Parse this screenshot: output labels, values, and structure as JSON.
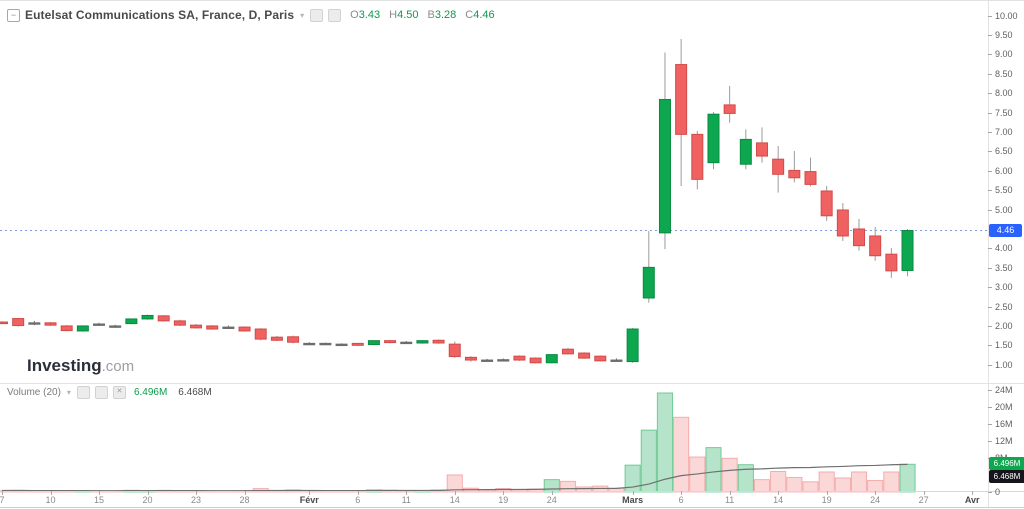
{
  "header": {
    "collapse_glyph": "−",
    "title": "Eutelsat Communications SA, France, D, Paris",
    "ohlc": [
      {
        "k": "O",
        "v": "3.43"
      },
      {
        "k": "H",
        "v": "4.50"
      },
      {
        "k": "B",
        "v": "3.28"
      },
      {
        "k": "C",
        "v": "4.46"
      }
    ]
  },
  "volume_legend": {
    "label": "Volume (20)",
    "current": "6.496M",
    "ma": "6.468M"
  },
  "watermark": {
    "brand": "Investing",
    "domain": ".com"
  },
  "badges": {
    "price": "4.46",
    "vol_current": "6.496M",
    "vol_ma": "6.468M"
  },
  "price_axis": [
    {
      "t": "10.00",
      "v": 10.0
    },
    {
      "t": "9.50",
      "v": 9.5
    },
    {
      "t": "9.00",
      "v": 9.0
    },
    {
      "t": "8.50",
      "v": 8.5
    },
    {
      "t": "8.00",
      "v": 8.0
    },
    {
      "t": "7.50",
      "v": 7.5
    },
    {
      "t": "7.00",
      "v": 7.0
    },
    {
      "t": "6.50",
      "v": 6.5
    },
    {
      "t": "6.00",
      "v": 6.0
    },
    {
      "t": "5.50",
      "v": 5.5
    },
    {
      "t": "5.00",
      "v": 5.0
    },
    {
      "t": "4.00",
      "v": 4.0
    },
    {
      "t": "3.50",
      "v": 3.5
    },
    {
      "t": "3.00",
      "v": 3.0
    },
    {
      "t": "2.50",
      "v": 2.5
    },
    {
      "t": "2.00",
      "v": 2.0
    },
    {
      "t": "1.50",
      "v": 1.5
    },
    {
      "t": "1.00",
      "v": 1.0
    }
  ],
  "volume_axis": [
    {
      "t": "24M",
      "v": 24
    },
    {
      "t": "20M",
      "v": 20
    },
    {
      "t": "16M",
      "v": 16
    },
    {
      "t": "12M",
      "v": 12
    },
    {
      "t": "8M",
      "v": 8
    },
    {
      "t": "0",
      "v": 0
    }
  ],
  "colors": {
    "up": "#0da750",
    "up_border": "#0a8a42",
    "down": "#f06262",
    "down_border": "#d14b49",
    "neutral": "#6d6d6d",
    "wick": "#9b9b9b",
    "vol_up": "rgba(13,167,80,0.30)",
    "vol_up_border": "rgba(13,167,80,0.50)",
    "vol_down": "rgba(240,98,98,0.25)",
    "vol_down_border": "rgba(240,98,98,0.45)",
    "ma_line": "#6f6f6f",
    "price_line": "#7f9ed9",
    "price_badge": "#2962ff"
  },
  "chart_data": {
    "type": "candlestick+volume",
    "title": "Eutelsat Communications SA, France, D, Paris",
    "interval": "D",
    "last_price": 4.46,
    "price_axis_visible_range": [
      1.0,
      10.0
    ],
    "volume_axis_range_millions": [
      0,
      24
    ],
    "volume_ma_period": 20,
    "volume_ma_last": 6.468,
    "x_labels": [
      {
        "t": "7",
        "i": 0,
        "month": false
      },
      {
        "t": "10",
        "i": 3,
        "month": false
      },
      {
        "t": "15",
        "i": 6,
        "month": false
      },
      {
        "t": "20",
        "i": 9,
        "month": false
      },
      {
        "t": "23",
        "i": 12,
        "month": false
      },
      {
        "t": "28",
        "i": 15,
        "month": false
      },
      {
        "t": "Févr",
        "i": 19,
        "month": true
      },
      {
        "t": "6",
        "i": 22,
        "month": false
      },
      {
        "t": "11",
        "i": 25,
        "month": false
      },
      {
        "t": "14",
        "i": 28,
        "month": false
      },
      {
        "t": "19",
        "i": 31,
        "month": false
      },
      {
        "t": "24",
        "i": 34,
        "month": false
      },
      {
        "t": "Mars",
        "i": 39,
        "month": true
      },
      {
        "t": "6",
        "i": 42,
        "month": false
      },
      {
        "t": "11",
        "i": 45,
        "month": false
      },
      {
        "t": "14",
        "i": 48,
        "month": false
      },
      {
        "t": "19",
        "i": 51,
        "month": false
      },
      {
        "t": "24",
        "i": 54,
        "month": false
      },
      {
        "t": "27",
        "i": 57,
        "month": false
      },
      {
        "t": "Avr",
        "i": 60,
        "month": true
      }
    ],
    "candles": [
      {
        "d": "7",
        "o": 2.1,
        "h": 2.12,
        "l": 2.04,
        "c": 2.06,
        "v": 0.3,
        "dir": "r"
      },
      {
        "d": "8",
        "o": 2.19,
        "h": 2.21,
        "l": 1.98,
        "c": 2.01,
        "v": 0.4,
        "dir": "r"
      },
      {
        "d": "9",
        "o": 2.08,
        "h": 2.13,
        "l": 2.02,
        "c": 2.07,
        "v": 0.2,
        "dir": "n"
      },
      {
        "d": "10",
        "o": 2.08,
        "h": 2.1,
        "l": 2.0,
        "c": 2.02,
        "v": 0.3,
        "dir": "r"
      },
      {
        "d": "13",
        "o": 2.0,
        "h": 2.02,
        "l": 1.86,
        "c": 1.88,
        "v": 0.35,
        "dir": "r"
      },
      {
        "d": "14",
        "o": 1.87,
        "h": 2.01,
        "l": 1.85,
        "c": 2.0,
        "v": 0.3,
        "dir": "g"
      },
      {
        "d": "15",
        "o": 2.05,
        "h": 2.08,
        "l": 2.0,
        "c": 2.03,
        "v": 0.2,
        "dir": "n"
      },
      {
        "d": "16",
        "o": 1.99,
        "h": 2.03,
        "l": 1.95,
        "c": 2.0,
        "v": 0.25,
        "dir": "n"
      },
      {
        "d": "17",
        "o": 2.06,
        "h": 2.19,
        "l": 2.04,
        "c": 2.18,
        "v": 0.4,
        "dir": "g"
      },
      {
        "d": "20",
        "o": 2.18,
        "h": 2.29,
        "l": 2.16,
        "c": 2.27,
        "v": 0.35,
        "dir": "g"
      },
      {
        "d": "21",
        "o": 2.26,
        "h": 2.28,
        "l": 2.11,
        "c": 2.13,
        "v": 0.4,
        "dir": "r"
      },
      {
        "d": "22",
        "o": 2.13,
        "h": 2.16,
        "l": 2.0,
        "c": 2.02,
        "v": 0.3,
        "dir": "r"
      },
      {
        "d": "23",
        "o": 2.02,
        "h": 2.05,
        "l": 1.93,
        "c": 1.95,
        "v": 0.3,
        "dir": "r"
      },
      {
        "d": "24",
        "o": 2.0,
        "h": 2.02,
        "l": 1.9,
        "c": 1.92,
        "v": 0.25,
        "dir": "r"
      },
      {
        "d": "27",
        "o": 1.97,
        "h": 2.01,
        "l": 1.92,
        "c": 1.95,
        "v": 0.2,
        "dir": "n"
      },
      {
        "d": "28",
        "o": 1.97,
        "h": 1.99,
        "l": 1.85,
        "c": 1.87,
        "v": 0.3,
        "dir": "r"
      },
      {
        "d": "29",
        "o": 1.92,
        "h": 1.94,
        "l": 1.63,
        "c": 1.66,
        "v": 0.8,
        "dir": "r"
      },
      {
        "d": "30",
        "o": 1.71,
        "h": 1.74,
        "l": 1.61,
        "c": 1.63,
        "v": 0.4,
        "dir": "r"
      },
      {
        "d": "31",
        "o": 1.72,
        "h": 1.75,
        "l": 1.55,
        "c": 1.58,
        "v": 0.5,
        "dir": "r"
      },
      {
        "d": "3",
        "o": 1.55,
        "h": 1.58,
        "l": 1.51,
        "c": 1.53,
        "v": 0.3,
        "dir": "n"
      },
      {
        "d": "4",
        "o": 1.55,
        "h": 1.57,
        "l": 1.51,
        "c": 1.54,
        "v": 0.25,
        "dir": "n"
      },
      {
        "d": "5",
        "o": 1.53,
        "h": 1.55,
        "l": 1.49,
        "c": 1.52,
        "v": 0.2,
        "dir": "n"
      },
      {
        "d": "6",
        "o": 1.55,
        "h": 1.56,
        "l": 1.48,
        "c": 1.5,
        "v": 0.35,
        "dir": "r"
      },
      {
        "d": "7",
        "o": 1.52,
        "h": 1.63,
        "l": 1.5,
        "c": 1.62,
        "v": 0.5,
        "dir": "g"
      },
      {
        "d": "10",
        "o": 1.62,
        "h": 1.64,
        "l": 1.55,
        "c": 1.57,
        "v": 0.45,
        "dir": "r"
      },
      {
        "d": "11",
        "o": 1.58,
        "h": 1.61,
        "l": 1.54,
        "c": 1.56,
        "v": 0.3,
        "dir": "n"
      },
      {
        "d": "12",
        "o": 1.56,
        "h": 1.63,
        "l": 1.54,
        "c": 1.62,
        "v": 0.35,
        "dir": "g"
      },
      {
        "d": "13",
        "o": 1.63,
        "h": 1.65,
        "l": 1.54,
        "c": 1.56,
        "v": 0.5,
        "dir": "r"
      },
      {
        "d": "14",
        "o": 1.53,
        "h": 1.6,
        "l": 1.18,
        "c": 1.21,
        "v": 4.0,
        "dir": "r"
      },
      {
        "d": "17",
        "o": 1.19,
        "h": 1.22,
        "l": 1.08,
        "c": 1.12,
        "v": 0.9,
        "dir": "r"
      },
      {
        "d": "18",
        "o": 1.12,
        "h": 1.15,
        "l": 1.08,
        "c": 1.1,
        "v": 0.5,
        "dir": "n"
      },
      {
        "d": "19",
        "o": 1.13,
        "h": 1.16,
        "l": 1.09,
        "c": 1.11,
        "v": 0.8,
        "dir": "n"
      },
      {
        "d": "20",
        "o": 1.22,
        "h": 1.24,
        "l": 1.1,
        "c": 1.12,
        "v": 0.6,
        "dir": "r"
      },
      {
        "d": "21",
        "o": 1.17,
        "h": 1.19,
        "l": 1.03,
        "c": 1.05,
        "v": 0.7,
        "dir": "r"
      },
      {
        "d": "24",
        "o": 1.05,
        "h": 1.27,
        "l": 1.03,
        "c": 1.26,
        "v": 2.9,
        "dir": "g"
      },
      {
        "d": "25",
        "o": 1.4,
        "h": 1.43,
        "l": 1.26,
        "c": 1.28,
        "v": 2.5,
        "dir": "r"
      },
      {
        "d": "26",
        "o": 1.3,
        "h": 1.32,
        "l": 1.15,
        "c": 1.17,
        "v": 1.2,
        "dir": "r"
      },
      {
        "d": "27",
        "o": 1.22,
        "h": 1.24,
        "l": 1.08,
        "c": 1.1,
        "v": 1.4,
        "dir": "r"
      },
      {
        "d": "28",
        "o": 1.12,
        "h": 1.16,
        "l": 1.07,
        "c": 1.1,
        "v": 0.9,
        "dir": "n"
      },
      {
        "d": "3",
        "o": 1.08,
        "h": 1.95,
        "l": 1.05,
        "c": 1.92,
        "v": 6.3,
        "dir": "g"
      },
      {
        "d": "4",
        "o": 2.72,
        "h": 4.45,
        "l": 2.6,
        "c": 3.51,
        "v": 14.5,
        "dir": "g"
      },
      {
        "d": "5",
        "o": 4.4,
        "h": 9.05,
        "l": 3.98,
        "c": 7.84,
        "v": 23.2,
        "dir": "g"
      },
      {
        "d": "6",
        "o": 8.74,
        "h": 9.4,
        "l": 5.61,
        "c": 6.94,
        "v": 17.5,
        "dir": "r"
      },
      {
        "d": "7",
        "o": 6.94,
        "h": 7.03,
        "l": 5.52,
        "c": 5.78,
        "v": 8.2,
        "dir": "r"
      },
      {
        "d": "10",
        "o": 6.21,
        "h": 7.52,
        "l": 6.04,
        "c": 7.46,
        "v": 10.4,
        "dir": "g"
      },
      {
        "d": "11",
        "o": 7.7,
        "h": 8.19,
        "l": 7.24,
        "c": 7.48,
        "v": 7.9,
        "dir": "r"
      },
      {
        "d": "12",
        "o": 6.17,
        "h": 7.07,
        "l": 6.04,
        "c": 6.81,
        "v": 6.4,
        "dir": "g"
      },
      {
        "d": "13",
        "o": 6.72,
        "h": 7.12,
        "l": 6.21,
        "c": 6.38,
        "v": 2.9,
        "dir": "r"
      },
      {
        "d": "14",
        "o": 6.3,
        "h": 6.64,
        "l": 5.44,
        "c": 5.91,
        "v": 4.8,
        "dir": "r"
      },
      {
        "d": "17",
        "o": 6.01,
        "h": 6.51,
        "l": 5.7,
        "c": 5.82,
        "v": 3.4,
        "dir": "r"
      },
      {
        "d": "18",
        "o": 5.98,
        "h": 6.34,
        "l": 5.6,
        "c": 5.65,
        "v": 2.4,
        "dir": "r"
      },
      {
        "d": "19",
        "o": 5.48,
        "h": 5.61,
        "l": 4.71,
        "c": 4.84,
        "v": 4.7,
        "dir": "r"
      },
      {
        "d": "20",
        "o": 4.99,
        "h": 5.17,
        "l": 4.19,
        "c": 4.32,
        "v": 3.3,
        "dir": "r"
      },
      {
        "d": "21",
        "o": 4.5,
        "h": 4.76,
        "l": 3.94,
        "c": 4.07,
        "v": 4.7,
        "dir": "r"
      },
      {
        "d": "24",
        "o": 4.32,
        "h": 4.55,
        "l": 3.68,
        "c": 3.81,
        "v": 2.7,
        "dir": "r"
      },
      {
        "d": "25",
        "o": 3.85,
        "h": 4.01,
        "l": 3.24,
        "c": 3.42,
        "v": 4.7,
        "dir": "r"
      },
      {
        "d": "26",
        "o": 3.43,
        "h": 4.5,
        "l": 3.28,
        "c": 4.46,
        "v": 6.496,
        "dir": "g"
      }
    ],
    "volume_ma20": [
      0.35,
      0.35,
      0.34,
      0.33,
      0.33,
      0.32,
      0.31,
      0.31,
      0.32,
      0.32,
      0.33,
      0.33,
      0.32,
      0.31,
      0.3,
      0.3,
      0.33,
      0.34,
      0.35,
      0.35,
      0.34,
      0.33,
      0.33,
      0.34,
      0.35,
      0.35,
      0.35,
      0.36,
      0.51,
      0.54,
      0.55,
      0.58,
      0.59,
      0.62,
      0.7,
      0.77,
      0.79,
      0.83,
      0.85,
      1.16,
      1.85,
      2.99,
      3.84,
      4.23,
      4.7,
      5.06,
      5.33,
      5.41,
      5.6,
      5.7,
      5.74,
      5.9,
      5.99,
      6.16,
      6.22,
      6.38,
      6.468
    ]
  }
}
